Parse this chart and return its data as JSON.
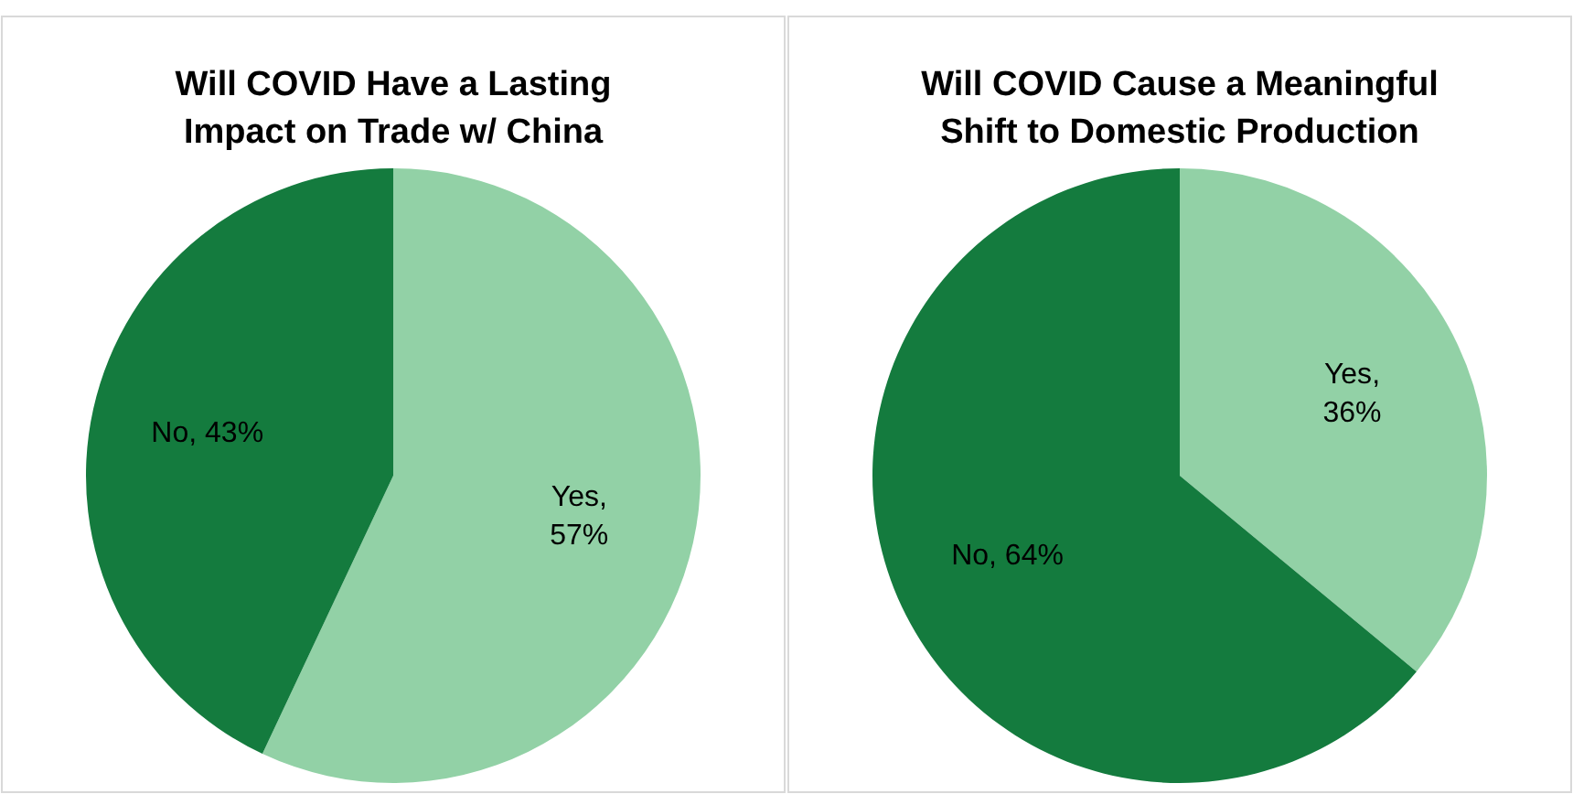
{
  "chart_data": [
    {
      "type": "pie",
      "title": "Will COVID Have a Lasting Impact on Trade w/ China",
      "categories": [
        "Yes",
        "No"
      ],
      "values": [
        57,
        43
      ],
      "colors": [
        "#92d1a6",
        "#147b3e"
      ],
      "value_labels": [
        ", 57%",
        ", 43%"
      ]
    },
    {
      "type": "pie",
      "title": "Will COVID Cause a Meaningful Shift to Domestic Production",
      "categories": [
        "Yes",
        "No"
      ],
      "values": [
        36,
        64
      ],
      "colors": [
        "#92d1a6",
        "#147b3e"
      ],
      "value_labels": [
        ", 36%",
        ", 64%"
      ]
    }
  ]
}
